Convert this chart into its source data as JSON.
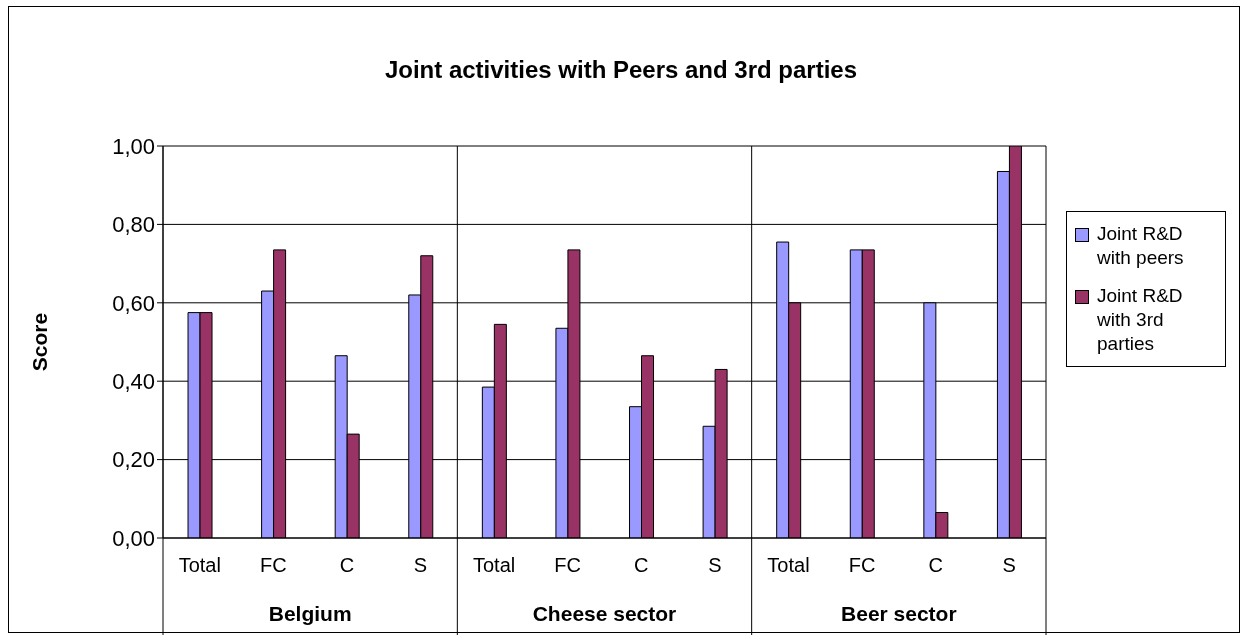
{
  "chart_data": {
    "type": "bar",
    "title": "Joint activities with Peers and 3rd parties",
    "ylabel": "Score",
    "categories": [
      "Total",
      "FC",
      "C",
      "S",
      "Total",
      "FC",
      "C",
      "S",
      "Total",
      "FC",
      "C",
      "S"
    ],
    "annotations": [
      "Belgium",
      "Cheese sector",
      "Beer sector"
    ],
    "series": [
      {
        "name": "Joint R&D with peers",
        "color": "#9999ff",
        "values": [
          0.575,
          0.63,
          0.465,
          0.62,
          0.385,
          0.535,
          0.335,
          0.285,
          0.755,
          0.735,
          0.6,
          0.935
        ]
      },
      {
        "name": "Joint R&D with 3rd parties",
        "color": "#993366",
        "values": [
          0.575,
          0.735,
          0.265,
          0.72,
          0.545,
          0.735,
          0.465,
          0.43,
          0.6,
          0.735,
          0.065,
          1.0
        ]
      }
    ],
    "ylim": [
      0,
      1
    ],
    "yticks": [
      {
        "value": 0,
        "label": "0,00"
      },
      {
        "value": 0.2,
        "label": "0,20"
      },
      {
        "value": 0.4,
        "label": "0,40"
      },
      {
        "value": 0.6,
        "label": "0,60"
      },
      {
        "value": 0.8,
        "label": "0,80"
      },
      {
        "value": 1,
        "label": "1,00"
      }
    ],
    "grid": "y",
    "legend": "right"
  }
}
